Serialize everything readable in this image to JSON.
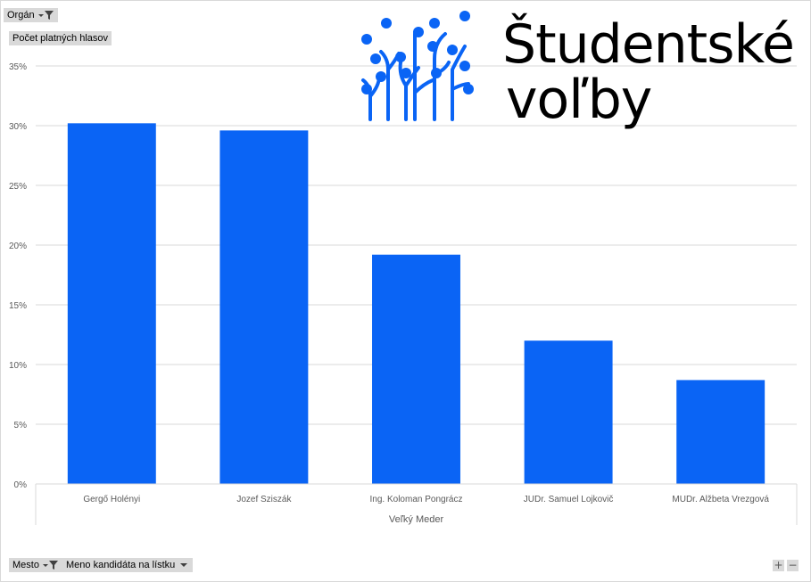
{
  "filters": {
    "organ": "Orgán",
    "value_field": "Počet platných hlasov",
    "mesto": "Mesto",
    "candidate": "Meno kandidáta na lístku"
  },
  "logo": {
    "line1": "Študentské",
    "line2": "voľby",
    "color": "#0a64f5"
  },
  "zoom": {
    "plus": "+",
    "minus": "−"
  },
  "chart_data": {
    "type": "bar",
    "group_label": "Veľký Meder",
    "categories": [
      "Gergő Holényi",
      "Jozef Sziszák",
      "Ing. Koloman Pongrácz",
      "JUDr. Samuel Lojkovič",
      "MUDr. Alžbeta Vrezgová"
    ],
    "values": [
      30.2,
      29.6,
      19.2,
      12.0,
      8.7
    ],
    "ylim": [
      0,
      35
    ],
    "yticks": [
      0,
      5,
      10,
      15,
      20,
      25,
      30,
      35
    ],
    "ytick_labels": [
      "0%",
      "5%",
      "10%",
      "15%",
      "20%",
      "25%",
      "30%",
      "35%"
    ],
    "bar_color": "#0a64f5",
    "grid": true
  }
}
